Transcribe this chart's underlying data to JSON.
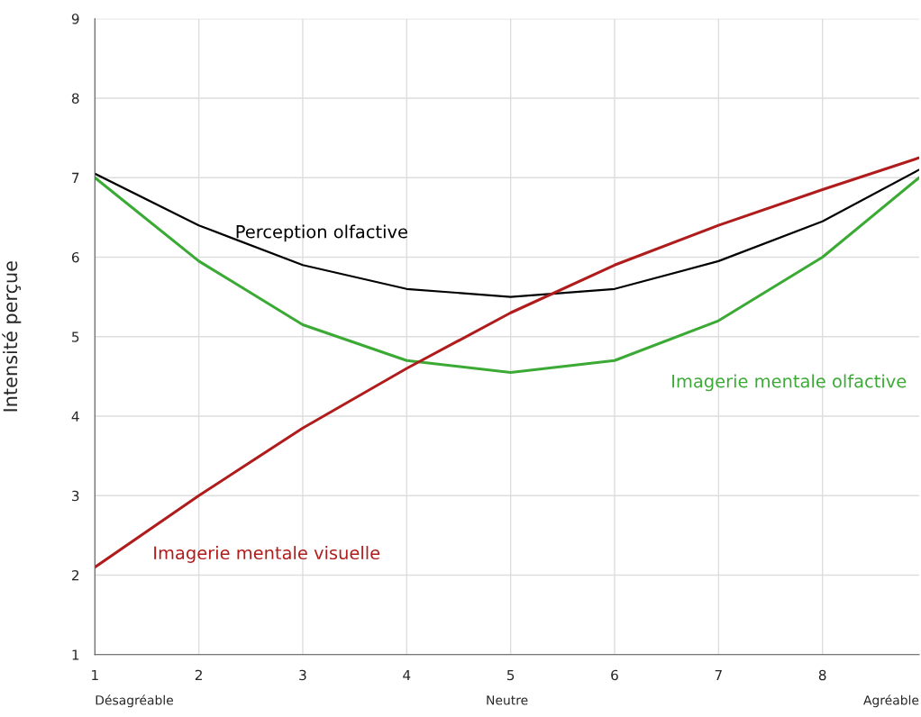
{
  "chart_data": {
    "type": "line",
    "ylabel": "Intensité perçue",
    "x": [
      1,
      2,
      3,
      4,
      5,
      6,
      7,
      8,
      8.93
    ],
    "series": [
      {
        "name": "Perception olfactive",
        "color": "#000000",
        "values": [
          7.05,
          6.4,
          5.9,
          5.6,
          5.5,
          5.6,
          5.95,
          6.45,
          7.1
        ]
      },
      {
        "name": "Imagerie mentale olfactive",
        "color": "#3aaa35",
        "values": [
          7.0,
          5.95,
          5.15,
          4.7,
          4.55,
          4.7,
          5.2,
          6.0,
          7.0
        ]
      },
      {
        "name": "Imagerie mentale visuelle",
        "color": "#b01c1c",
        "values": [
          2.1,
          3.0,
          3.85,
          4.6,
          5.3,
          5.9,
          6.4,
          6.85,
          7.25
        ]
      }
    ],
    "xlim": [
      1,
      8.93
    ],
    "xticks": [
      1,
      2,
      3,
      4,
      5,
      6,
      7,
      8
    ],
    "ylim": [
      1,
      9
    ],
    "yticks": [
      1,
      2,
      3,
      4,
      5,
      6,
      7,
      8,
      9
    ],
    "grid": true,
    "annotations": [
      "Désagréable",
      "Neutre",
      "Agréable"
    ]
  }
}
